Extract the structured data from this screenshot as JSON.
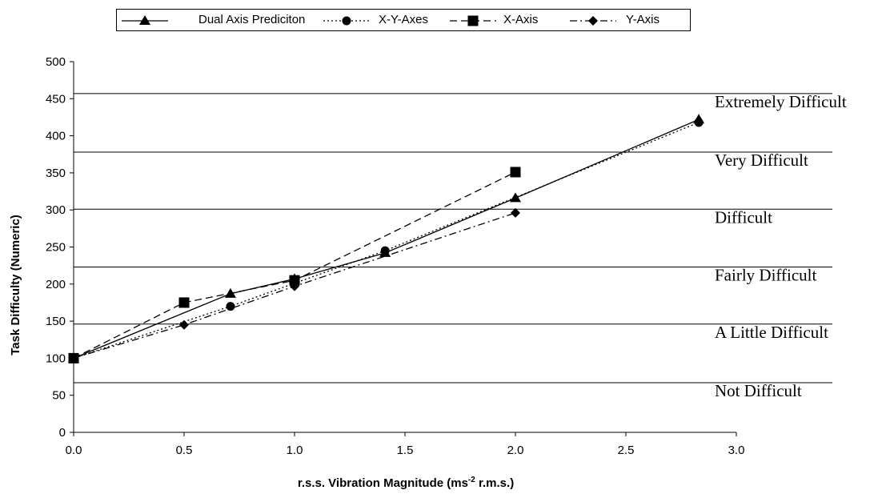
{
  "chart_data": {
    "type": "line",
    "xlabel": "r.s.s. Vibration Magnitude (ms",
    "xlabel_sup": "-2",
    "xlabel_suffix": " r.m.s.)",
    "ylabel": "Task Difficulty (Numeric)",
    "xlim": [
      0,
      3
    ],
    "ylim": [
      0,
      500
    ],
    "x_ticks": [
      "0.0",
      "0.5",
      "1.0",
      "1.5",
      "2.0",
      "2.5",
      "3.0"
    ],
    "y_ticks": [
      "0",
      "50",
      "100",
      "150",
      "200",
      "250",
      "300",
      "350",
      "400",
      "450",
      "500"
    ],
    "legend_position": "top",
    "series": [
      {
        "name": "Dual Axis Prediciton",
        "marker": "triangle",
        "dash": "solid",
        "x": [
          0,
          0.71,
          1.0,
          1.41,
          2.0,
          2.83
        ],
        "y": [
          100,
          187,
          207,
          242,
          316,
          422
        ]
      },
      {
        "name": "X-Y-Axes",
        "marker": "circle",
        "dash": "dotted",
        "x": [
          0,
          0.71,
          1.41,
          2.83
        ],
        "y": [
          100,
          170,
          245,
          418
        ]
      },
      {
        "name": "X-Axis",
        "marker": "square",
        "dash": "dashed",
        "x": [
          0,
          0.5,
          1.0,
          2.0
        ],
        "y": [
          100,
          175,
          205,
          351
        ]
      },
      {
        "name": "Y-Axis",
        "marker": "diamond",
        "dash": "dashdot",
        "x": [
          0,
          0.5,
          1.0,
          2.0
        ],
        "y": [
          100,
          145,
          197,
          296
        ]
      }
    ],
    "reference_lines": [
      {
        "label": "Not Difficult",
        "y": 67
      },
      {
        "label": "A Little Difficult",
        "y": 146
      },
      {
        "label": "Fairly Difficult",
        "y": 223
      },
      {
        "label": "Difficult",
        "y": 301
      },
      {
        "label": "Very Difficult",
        "y": 378
      },
      {
        "label": "Extremely Difficult",
        "y": 457
      }
    ]
  }
}
